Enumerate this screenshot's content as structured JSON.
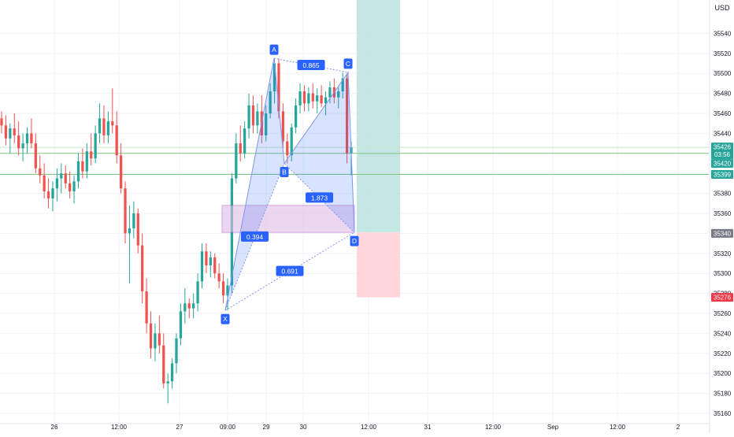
{
  "currency": "USD",
  "chart_data": {
    "type": "candlestick",
    "title": "",
    "currency_label": "USD",
    "y_ticks": [
      35160,
      35180,
      35200,
      35220,
      35240,
      35260,
      35280,
      35300,
      35320,
      35340,
      35360,
      35380,
      35400,
      35420,
      35440,
      35460,
      35480,
      35500,
      35520,
      35540
    ],
    "ylim": [
      35149,
      35555
    ],
    "x_ticks": [
      "26",
      "12:00",
      "27",
      "09:00",
      "29",
      "30",
      "12:00",
      "31",
      "12:00",
      "Sep",
      "12:00",
      "2"
    ],
    "grid": true,
    "colors": {
      "up": "#26a69a",
      "down": "#ef5350",
      "pattern": "#2962ff",
      "zone": "#9c27b0",
      "profit": "#b2dfdb",
      "loss": "#ffcdd2"
    },
    "price_labels": [
      {
        "value": 35426,
        "text": "35426",
        "sub": "03:56",
        "color": "#26a69a"
      },
      {
        "value": 35420,
        "text": "35420",
        "color": "#26a69a"
      },
      {
        "value": 35399,
        "text": "35399",
        "color": "#26a69a"
      },
      {
        "value": 35340,
        "text": "35340",
        "color": "#787b86"
      },
      {
        "value": 35276,
        "text": "35276",
        "color": "#f23645"
      }
    ],
    "pattern": {
      "points": [
        {
          "label": "X",
          "value": 35263
        },
        {
          "label": "A",
          "value": 35515
        },
        {
          "label": "B",
          "value": 35410
        },
        {
          "label": "C",
          "value": 35501
        },
        {
          "label": "D",
          "value": 35341
        }
      ],
      "ratios": [
        "0.865",
        "1.873",
        "0.394",
        "0.691"
      ]
    },
    "zone": {
      "top": 35368,
      "bottom": 35341
    },
    "position": {
      "entry": 35341,
      "target": 35555,
      "stop": 35276
    },
    "candles": [
      {
        "o": 35455,
        "h": 35462,
        "l": 35440,
        "c": 35448
      },
      {
        "o": 35448,
        "h": 35458,
        "l": 35428,
        "c": 35435
      },
      {
        "o": 35435,
        "h": 35450,
        "l": 35420,
        "c": 35445
      },
      {
        "o": 35445,
        "h": 35460,
        "l": 35430,
        "c": 35438
      },
      {
        "o": 35438,
        "h": 35452,
        "l": 35418,
        "c": 35425
      },
      {
        "o": 35425,
        "h": 35440,
        "l": 35412,
        "c": 35430
      },
      {
        "o": 35430,
        "h": 35446,
        "l": 35420,
        "c": 35440
      },
      {
        "o": 35440,
        "h": 35455,
        "l": 35425,
        "c": 35430
      },
      {
        "o": 35430,
        "h": 35440,
        "l": 35400,
        "c": 35405
      },
      {
        "o": 35405,
        "h": 35418,
        "l": 35390,
        "c": 35398
      },
      {
        "o": 35398,
        "h": 35410,
        "l": 35375,
        "c": 35382
      },
      {
        "o": 35382,
        "h": 35395,
        "l": 35365,
        "c": 35375
      },
      {
        "o": 35375,
        "h": 35392,
        "l": 35362,
        "c": 35385
      },
      {
        "o": 35385,
        "h": 35405,
        "l": 35372,
        "c": 35395
      },
      {
        "o": 35395,
        "h": 35410,
        "l": 35380,
        "c": 35400
      },
      {
        "o": 35400,
        "h": 35408,
        "l": 35385,
        "c": 35390
      },
      {
        "o": 35390,
        "h": 35402,
        "l": 35375,
        "c": 35382
      },
      {
        "o": 35382,
        "h": 35398,
        "l": 35370,
        "c": 35392
      },
      {
        "o": 35392,
        "h": 35420,
        "l": 35385,
        "c": 35412
      },
      {
        "o": 35412,
        "h": 35425,
        "l": 35395,
        "c": 35402
      },
      {
        "o": 35402,
        "h": 35430,
        "l": 35395,
        "c": 35422
      },
      {
        "o": 35422,
        "h": 35440,
        "l": 35408,
        "c": 35415
      },
      {
        "o": 35415,
        "h": 35448,
        "l": 35410,
        "c": 35440
      },
      {
        "o": 35440,
        "h": 35470,
        "l": 35430,
        "c": 35455
      },
      {
        "o": 35455,
        "h": 35468,
        "l": 35430,
        "c": 35438
      },
      {
        "o": 35438,
        "h": 35462,
        "l": 35430,
        "c": 35452
      },
      {
        "o": 35452,
        "h": 35485,
        "l": 35440,
        "c": 35448
      },
      {
        "o": 35448,
        "h": 35462,
        "l": 35410,
        "c": 35418
      },
      {
        "o": 35418,
        "h": 35430,
        "l": 35380,
        "c": 35385
      },
      {
        "o": 35385,
        "h": 35392,
        "l": 35330,
        "c": 35340
      },
      {
        "o": 35340,
        "h": 35368,
        "l": 35290,
        "c": 35345
      },
      {
        "o": 35345,
        "h": 35372,
        "l": 35335,
        "c": 35360
      },
      {
        "o": 35360,
        "h": 35365,
        "l": 35320,
        "c": 35328
      },
      {
        "o": 35328,
        "h": 35340,
        "l": 35270,
        "c": 35282
      },
      {
        "o": 35282,
        "h": 35295,
        "l": 35240,
        "c": 35250
      },
      {
        "o": 35250,
        "h": 35262,
        "l": 35215,
        "c": 35225
      },
      {
        "o": 35225,
        "h": 35250,
        "l": 35212,
        "c": 35240
      },
      {
        "o": 35240,
        "h": 35258,
        "l": 35220,
        "c": 35228
      },
      {
        "o": 35228,
        "h": 35240,
        "l": 35185,
        "c": 35190
      },
      {
        "o": 35190,
        "h": 35200,
        "l": 35170,
        "c": 35192
      },
      {
        "o": 35192,
        "h": 35215,
        "l": 35185,
        "c": 35210
      },
      {
        "o": 35210,
        "h": 35240,
        "l": 35200,
        "c": 35235
      },
      {
        "o": 35235,
        "h": 35270,
        "l": 35228,
        "c": 35262
      },
      {
        "o": 35262,
        "h": 35285,
        "l": 35250,
        "c": 35270
      },
      {
        "o": 35270,
        "h": 35275,
        "l": 35255,
        "c": 35265
      },
      {
        "o": 35265,
        "h": 35280,
        "l": 35255,
        "c": 35270
      },
      {
        "o": 35270,
        "h": 35300,
        "l": 35262,
        "c": 35292
      },
      {
        "o": 35292,
        "h": 35330,
        "l": 35285,
        "c": 35322
      },
      {
        "o": 35322,
        "h": 35330,
        "l": 35300,
        "c": 35308
      },
      {
        "o": 35308,
        "h": 35322,
        "l": 35296,
        "c": 35316
      },
      {
        "o": 35316,
        "h": 35320,
        "l": 35295,
        "c": 35300
      },
      {
        "o": 35300,
        "h": 35310,
        "l": 35285,
        "c": 35292
      },
      {
        "o": 35292,
        "h": 35300,
        "l": 35270,
        "c": 35278
      },
      {
        "o": 35278,
        "h": 35295,
        "l": 35263,
        "c": 35288
      },
      {
        "o": 35288,
        "h": 35400,
        "l": 35280,
        "c": 35395
      },
      {
        "o": 35395,
        "h": 35440,
        "l": 35390,
        "c": 35430
      },
      {
        "o": 35430,
        "h": 35448,
        "l": 35412,
        "c": 35420
      },
      {
        "o": 35420,
        "h": 35452,
        "l": 35415,
        "c": 35445
      },
      {
        "o": 35445,
        "h": 35480,
        "l": 35435,
        "c": 35468
      },
      {
        "o": 35468,
        "h": 35478,
        "l": 35440,
        "c": 35448
      },
      {
        "o": 35448,
        "h": 35470,
        "l": 35440,
        "c": 35462
      },
      {
        "o": 35462,
        "h": 35478,
        "l": 35430,
        "c": 35438
      },
      {
        "o": 35438,
        "h": 35468,
        "l": 35432,
        "c": 35460
      },
      {
        "o": 35460,
        "h": 35490,
        "l": 35455,
        "c": 35482
      },
      {
        "o": 35482,
        "h": 35515,
        "l": 35470,
        "c": 35510
      },
      {
        "o": 35510,
        "h": 35515,
        "l": 35455,
        "c": 35462
      },
      {
        "o": 35462,
        "h": 35470,
        "l": 35425,
        "c": 35432
      },
      {
        "o": 35432,
        "h": 35440,
        "l": 35410,
        "c": 35418
      },
      {
        "o": 35418,
        "h": 35450,
        "l": 35412,
        "c": 35446
      },
      {
        "o": 35446,
        "h": 35475,
        "l": 35440,
        "c": 35468
      },
      {
        "o": 35468,
        "h": 35490,
        "l": 35460,
        "c": 35482
      },
      {
        "o": 35482,
        "h": 35488,
        "l": 35462,
        "c": 35470
      },
      {
        "o": 35470,
        "h": 35486,
        "l": 35462,
        "c": 35480
      },
      {
        "o": 35480,
        "h": 35490,
        "l": 35465,
        "c": 35472
      },
      {
        "o": 35472,
        "h": 35485,
        "l": 35460,
        "c": 35478
      },
      {
        "o": 35478,
        "h": 35488,
        "l": 35466,
        "c": 35470
      },
      {
        "o": 35470,
        "h": 35482,
        "l": 35458,
        "c": 35476
      },
      {
        "o": 35476,
        "h": 35492,
        "l": 35470,
        "c": 35486
      },
      {
        "o": 35486,
        "h": 35495,
        "l": 35470,
        "c": 35476
      },
      {
        "o": 35476,
        "h": 35486,
        "l": 35465,
        "c": 35482
      },
      {
        "o": 35482,
        "h": 35501,
        "l": 35475,
        "c": 35495
      },
      {
        "o": 35495,
        "h": 35500,
        "l": 35410,
        "c": 35420
      },
      {
        "o": 35420,
        "h": 35432,
        "l": 35398,
        "c": 35426
      }
    ]
  }
}
